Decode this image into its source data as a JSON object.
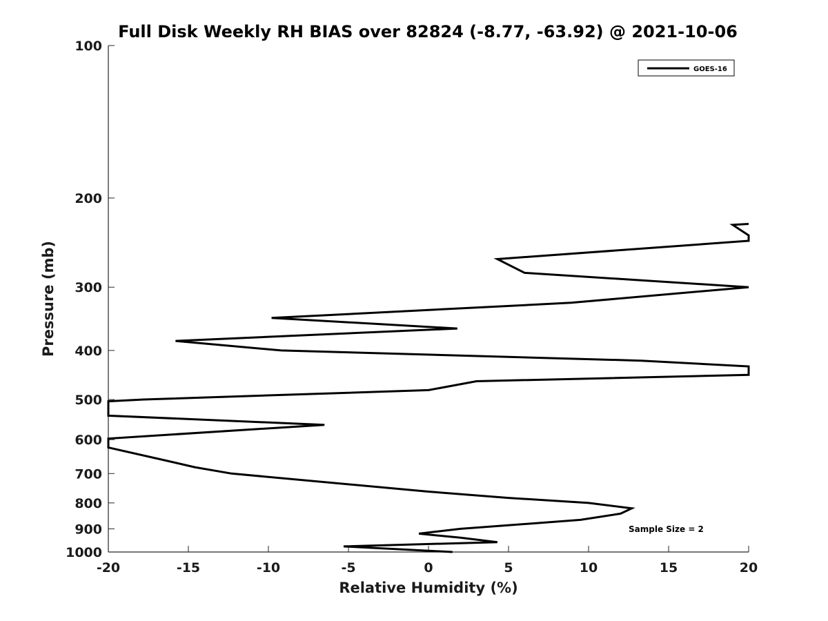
{
  "chart_data": {
    "type": "line",
    "title": "Full Disk Weekly RH BIAS over 82824 (-8.77, -63.92) @ 2021-10-06",
    "xlabel": "Relative Humidity (%)",
    "ylabel": "Pressure (mb)",
    "xlim": [
      -20,
      20
    ],
    "ylim": [
      100,
      1000
    ],
    "y_scale": "log",
    "y_reversed": true,
    "grid": false,
    "legend_position": "top-right",
    "x_ticks": [
      "-20",
      "-15",
      "-10",
      "-5",
      "0",
      "5",
      "10",
      "15",
      "20"
    ],
    "y_ticks": [
      "100",
      "200",
      "300",
      "400",
      "500",
      "600",
      "700",
      "800",
      "900",
      "1000"
    ],
    "series": [
      {
        "name": "GOES-16",
        "color": "#000000",
        "points": [
          {
            "x": 20.0,
            "y": 225
          },
          {
            "x": 19.0,
            "y": 226
          },
          {
            "x": 20.0,
            "y": 237
          },
          {
            "x": 20.0,
            "y": 243
          },
          {
            "x": 4.3,
            "y": 264
          },
          {
            "x": 6.0,
            "y": 281
          },
          {
            "x": 20.0,
            "y": 300
          },
          {
            "x": 8.9,
            "y": 322
          },
          {
            "x": -9.8,
            "y": 345
          },
          {
            "x": 1.8,
            "y": 362
          },
          {
            "x": -15.8,
            "y": 383
          },
          {
            "x": -9.2,
            "y": 400
          },
          {
            "x": 13.3,
            "y": 419
          },
          {
            "x": 20.0,
            "y": 430
          },
          {
            "x": 20.0,
            "y": 447
          },
          {
            "x": 3.0,
            "y": 460
          },
          {
            "x": 0.0,
            "y": 479
          },
          {
            "x": -17.8,
            "y": 500
          },
          {
            "x": -20.0,
            "y": 504
          },
          {
            "x": -20.0,
            "y": 538
          },
          {
            "x": -6.5,
            "y": 561
          },
          {
            "x": -20.0,
            "y": 597
          },
          {
            "x": -20.0,
            "y": 622
          },
          {
            "x": -16.3,
            "y": 661
          },
          {
            "x": -14.6,
            "y": 680
          },
          {
            "x": -12.3,
            "y": 700
          },
          {
            "x": 0.0,
            "y": 760
          },
          {
            "x": 5.0,
            "y": 782
          },
          {
            "x": 10.0,
            "y": 800
          },
          {
            "x": 12.7,
            "y": 820
          },
          {
            "x": 12.0,
            "y": 840
          },
          {
            "x": 9.5,
            "y": 864
          },
          {
            "x": 2.0,
            "y": 900
          },
          {
            "x": -0.6,
            "y": 920
          },
          {
            "x": 2.0,
            "y": 937
          },
          {
            "x": 4.3,
            "y": 956
          },
          {
            "x": -5.3,
            "y": 975
          },
          {
            "x": 1.5,
            "y": 1000
          }
        ]
      }
    ],
    "annotations": [
      {
        "text": "Sample Size = 2"
      }
    ]
  }
}
